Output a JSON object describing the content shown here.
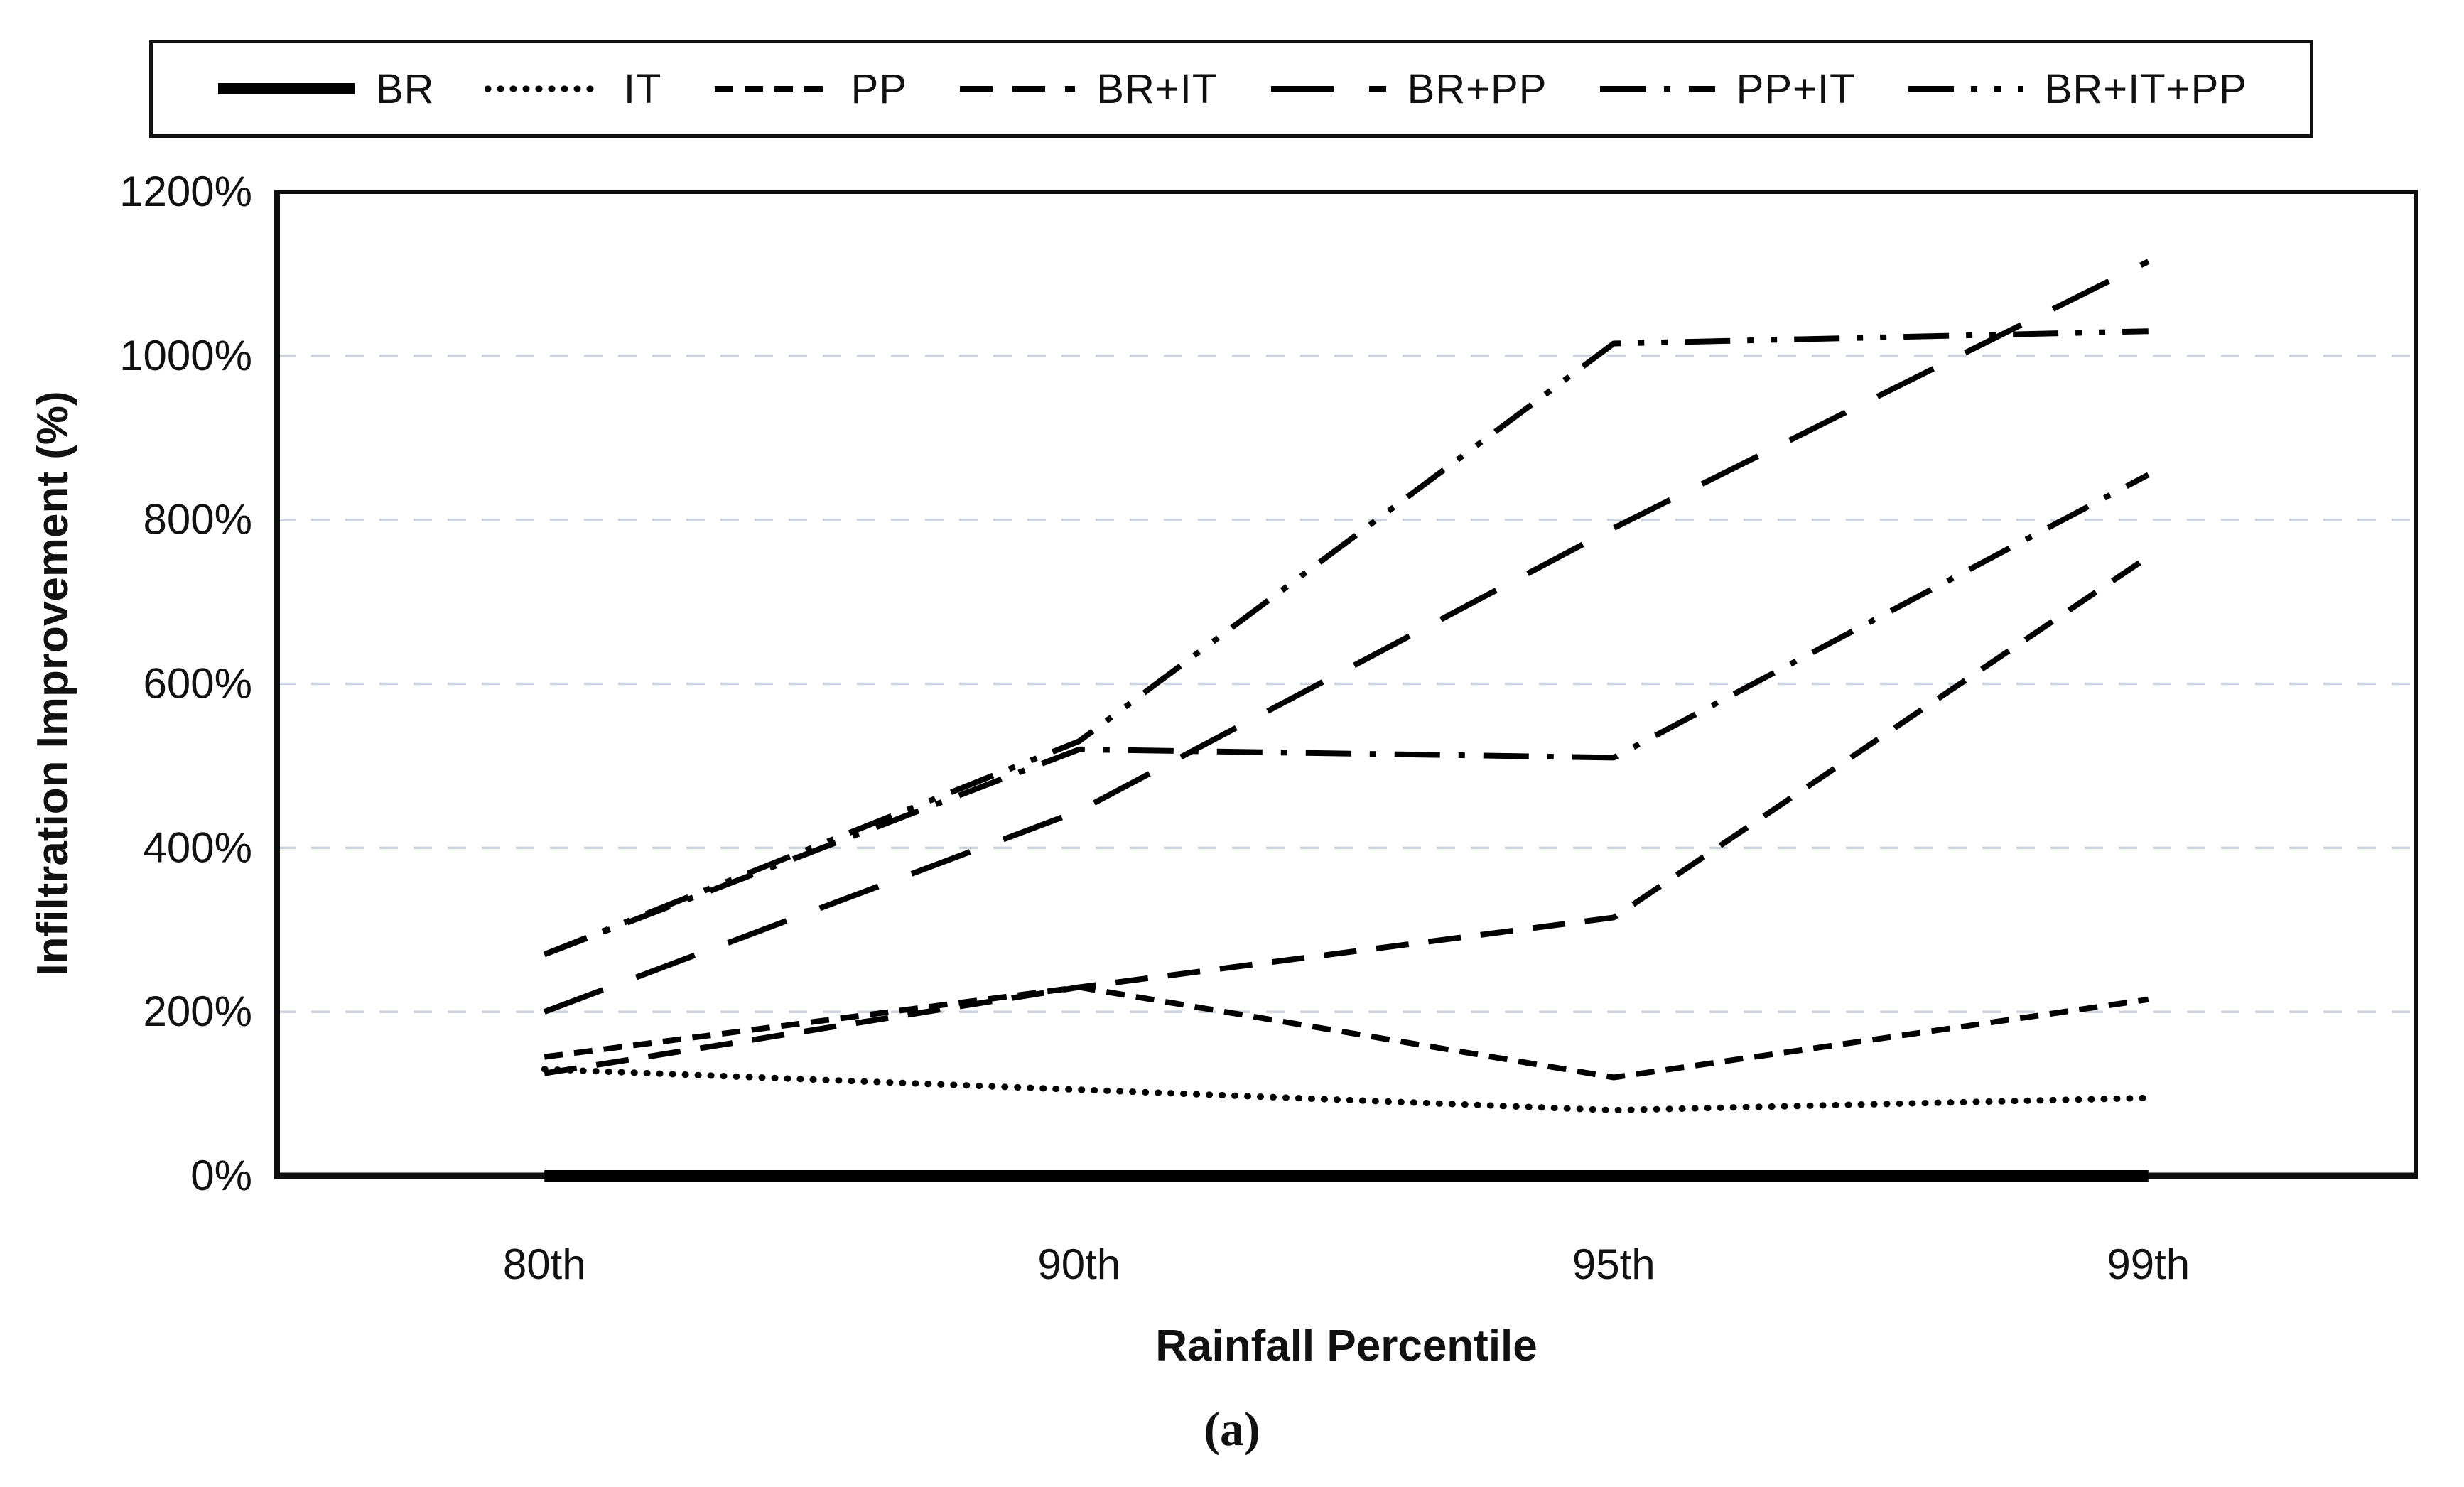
{
  "page": {
    "background": "#ffffff",
    "caption": "(a)"
  },
  "legend": {
    "position": "top",
    "items": [
      {
        "label": "BR",
        "style": "solid"
      },
      {
        "label": "IT",
        "style": "dotted"
      },
      {
        "label": "PP",
        "style": "dash-short"
      },
      {
        "label": "BR+IT",
        "style": "dash-medium"
      },
      {
        "label": "BR+PP",
        "style": "dash-long"
      },
      {
        "label": "PP+IT",
        "style": "dash-dot"
      },
      {
        "label": "BR+IT+PP",
        "style": "dash-dot-dot"
      }
    ]
  },
  "chart_data": {
    "type": "line",
    "title": "",
    "xlabel": "Rainfall Percentile",
    "ylabel": "Infiltration Improvement (%)",
    "categories": [
      "80th",
      "90th",
      "95th",
      "99th"
    ],
    "ylim": [
      0,
      1200
    ],
    "y_tick_step": 200,
    "y_tick_labels": [
      "0%",
      "200%",
      "400%",
      "600%",
      "800%",
      "1000%",
      "1200%"
    ],
    "grid": "horizontal-dashed",
    "legend_position": "top",
    "series": [
      {
        "name": "BR",
        "style": "solid",
        "values": [
          0,
          0,
          0,
          0
        ]
      },
      {
        "name": "IT",
        "style": "dotted",
        "values": [
          130,
          105,
          80,
          95
        ]
      },
      {
        "name": "PP",
        "style": "dash-short",
        "values": [
          145,
          230,
          120,
          215
        ]
      },
      {
        "name": "BR+IT",
        "style": "dash-medium",
        "values": [
          125,
          230,
          315,
          755
        ]
      },
      {
        "name": "BR+PP",
        "style": "dash-long",
        "values": [
          200,
          445,
          790,
          1115
        ]
      },
      {
        "name": "PP+IT",
        "style": "dash-dot",
        "values": [
          270,
          520,
          510,
          855
        ]
      },
      {
        "name": "BR+IT+PP",
        "style": "dash-dot-dot",
        "values": [
          270,
          530,
          1015,
          1030
        ]
      }
    ]
  },
  "colors": {
    "line": "#000000",
    "grid": "#ccd4de",
    "frame": "#0d0d0d",
    "text": "#111111"
  }
}
